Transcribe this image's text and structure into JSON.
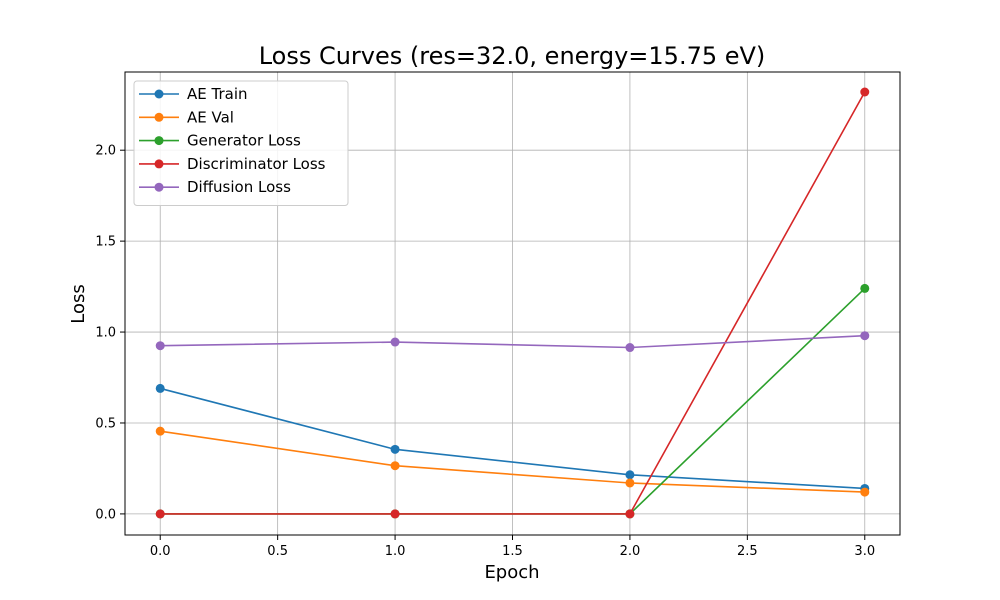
{
  "chart_data": {
    "type": "line",
    "title": "Loss Curves (res=32.0, energy=15.75 eV)",
    "xlabel": "Epoch",
    "ylabel": "Loss",
    "x": [
      0,
      1,
      2,
      3
    ],
    "xlim": [
      -0.15,
      3.15
    ],
    "ylim": [
      -0.116,
      2.43
    ],
    "xticks": [
      0.0,
      0.5,
      1.0,
      1.5,
      2.0,
      2.5,
      3.0
    ],
    "xtick_labels": [
      "0.0",
      "0.5",
      "1.0",
      "1.5",
      "2.0",
      "2.5",
      "3.0"
    ],
    "yticks": [
      0.0,
      0.5,
      1.0,
      1.5,
      2.0
    ],
    "ytick_labels": [
      "0.0",
      "0.5",
      "1.0",
      "1.5",
      "2.0"
    ],
    "grid": true,
    "legend_position": "top-left",
    "series": [
      {
        "name": "AE Train",
        "color": "#1f77b4",
        "values": [
          0.69,
          0.355,
          0.215,
          0.14
        ]
      },
      {
        "name": "AE Val",
        "color": "#ff7f0e",
        "values": [
          0.455,
          0.265,
          0.17,
          0.12
        ]
      },
      {
        "name": "Generator Loss",
        "color": "#2ca02c",
        "values": [
          0.0,
          0.0,
          0.0,
          1.24
        ]
      },
      {
        "name": "Discriminator Loss",
        "color": "#d62728",
        "values": [
          0.0,
          0.0,
          0.0,
          2.32
        ]
      },
      {
        "name": "Diffusion Loss",
        "color": "#9467bd",
        "values": [
          0.925,
          0.945,
          0.915,
          0.98
        ]
      }
    ]
  }
}
